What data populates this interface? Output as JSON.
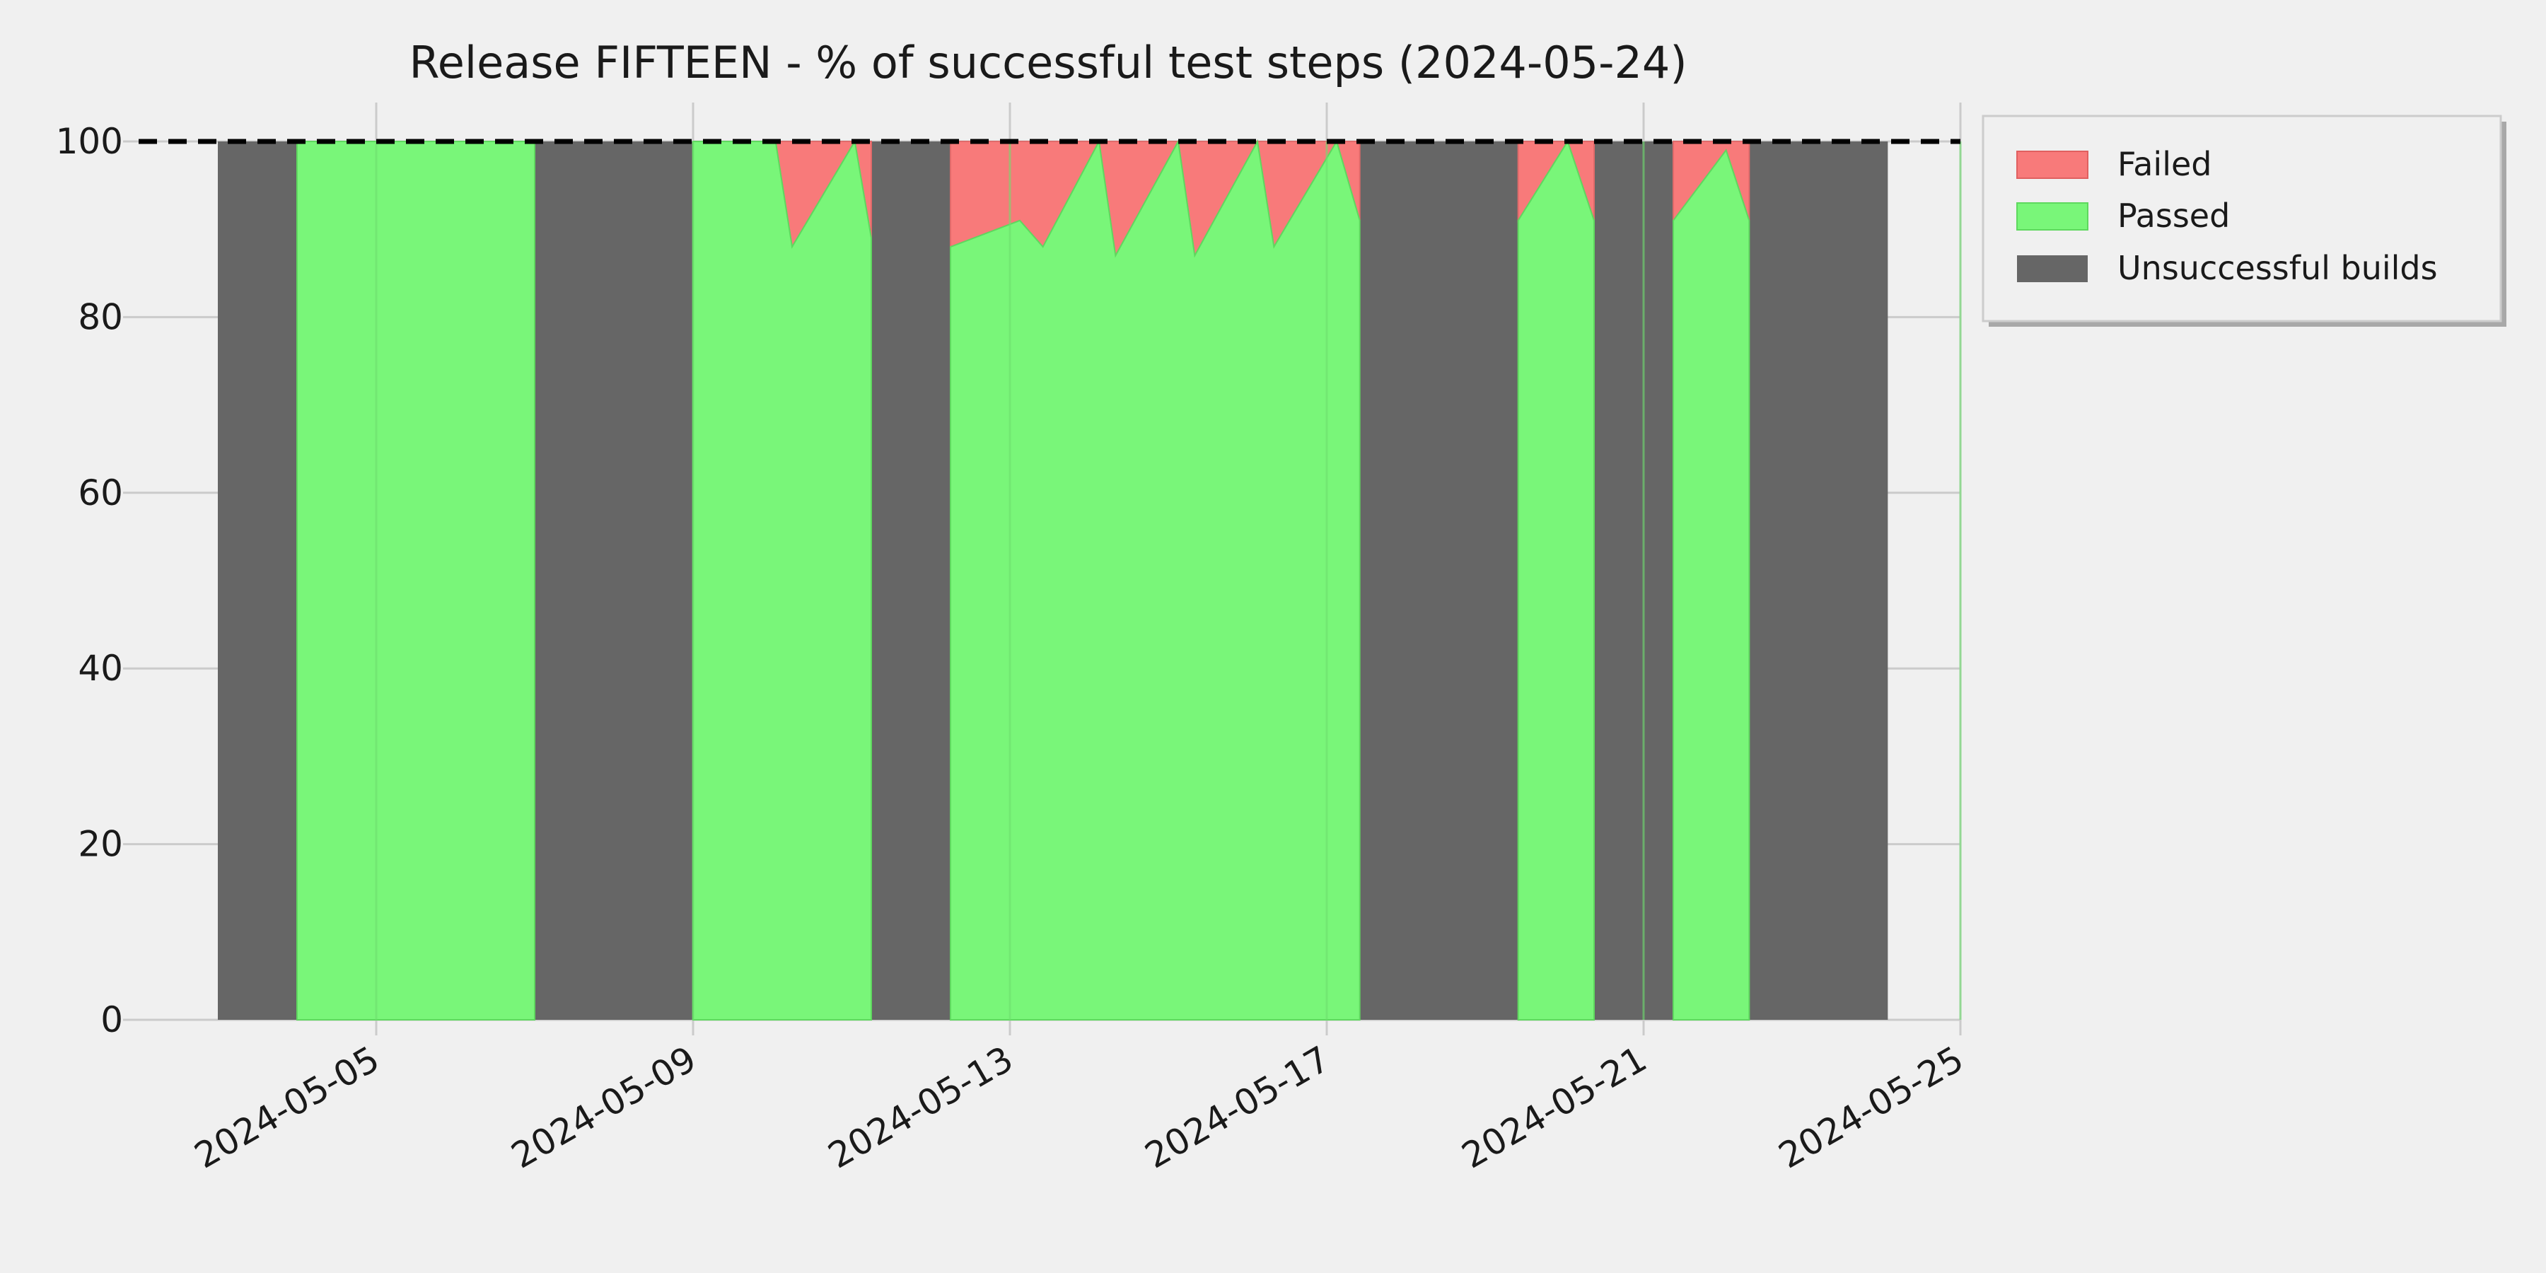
{
  "chart_data": {
    "type": "area",
    "title": "Release FIFTEEN - % of successful test steps (2024-05-24)",
    "xlabel": "",
    "ylabel": "",
    "x_axis": {
      "kind": "date",
      "range": [
        "2024-05-02",
        "2024-05-25"
      ],
      "ticks": [
        "2024-05-05",
        "2024-05-09",
        "2024-05-13",
        "2024-05-17",
        "2024-05-21",
        "2024-05-25"
      ]
    },
    "y_axis": {
      "range": [
        0,
        100
      ],
      "ticks": [
        "0",
        "20",
        "40",
        "60",
        "80",
        "100"
      ]
    },
    "grid": true,
    "reference_line": {
      "y": 100,
      "style": "dashed",
      "color": "#000000"
    },
    "legend": {
      "position": "outside-right-top",
      "entries": [
        "Failed",
        "Passed",
        "Unsuccessful builds"
      ]
    },
    "colors": {
      "failed": "#f87a7a",
      "passed": "#79f679",
      "unsuccessful": "#666666",
      "background": "#f0f0f0"
    },
    "unsuccessful_builds": [
      {
        "start": "2024-05-03 00:00",
        "end": "2024-05-04 00:00"
      },
      {
        "start": "2024-05-07 00:00",
        "end": "2024-05-09 00:00"
      },
      {
        "start": "2024-05-11 06:00",
        "end": "2024-05-12 06:00"
      },
      {
        "start": "2024-05-17 10:00",
        "end": "2024-05-19 10:00"
      },
      {
        "start": "2024-05-20 09:00",
        "end": "2024-05-21 09:00"
      },
      {
        "start": "2024-05-22 08:00",
        "end": "2024-05-24 02:00"
      }
    ],
    "series": [
      {
        "name": "Passed",
        "segments": [
          {
            "x": [
              "2024-05-04 00:00",
              "2024-05-07 00:00"
            ],
            "y": [
              100,
              100
            ]
          },
          {
            "x": [
              "2024-05-09 00:00",
              "2024-05-10 01:00",
              "2024-05-10 06:00",
              "2024-05-11 01:00",
              "2024-05-11 06:00"
            ],
            "y": [
              100,
              100,
              88,
              100,
              89
            ]
          },
          {
            "x": [
              "2024-05-12 06:00",
              "2024-05-13 03:00",
              "2024-05-13 10:00",
              "2024-05-14 03:00",
              "2024-05-14 08:00",
              "2024-05-15 03:00",
              "2024-05-15 08:00",
              "2024-05-16 03:00",
              "2024-05-16 08:00",
              "2024-05-17 03:00",
              "2024-05-17 10:00"
            ],
            "y": [
              88,
              91,
              88,
              100,
              87,
              100,
              87,
              100,
              88,
              100,
              91
            ]
          },
          {
            "x": [
              "2024-05-19 10:00",
              "2024-05-20 01:00",
              "2024-05-20 09:00"
            ],
            "y": [
              91,
              100,
              91
            ]
          },
          {
            "x": [
              "2024-05-21 09:00",
              "2024-05-22 01:00",
              "2024-05-22 08:00"
            ],
            "y": [
              91,
              99,
              91
            ]
          }
        ]
      },
      {
        "name": "Failed"
      }
    ]
  }
}
